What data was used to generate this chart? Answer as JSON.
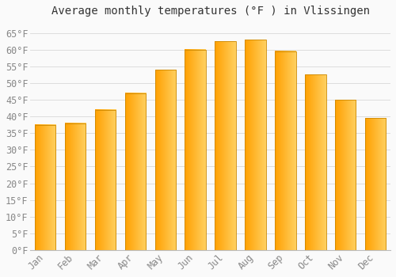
{
  "title": "Average monthly temperatures (°F ) in Vlissingen",
  "months": [
    "Jan",
    "Feb",
    "Mar",
    "Apr",
    "May",
    "Jun",
    "Jul",
    "Aug",
    "Sep",
    "Oct",
    "Nov",
    "Dec"
  ],
  "values": [
    37.5,
    38,
    42,
    47,
    54,
    60,
    62.5,
    63,
    59.5,
    52.5,
    45,
    39.5
  ],
  "bar_color_left": "#FFA000",
  "bar_color_right": "#FFD060",
  "bar_edge_color": "#CC8800",
  "background_color": "#FAFAFA",
  "grid_color": "#DDDDDD",
  "ylim": [
    0,
    68
  ],
  "yticks": [
    0,
    5,
    10,
    15,
    20,
    25,
    30,
    35,
    40,
    45,
    50,
    55,
    60,
    65
  ],
  "title_fontsize": 10,
  "tick_fontsize": 8.5,
  "font_family": "monospace",
  "tick_color": "#888888"
}
